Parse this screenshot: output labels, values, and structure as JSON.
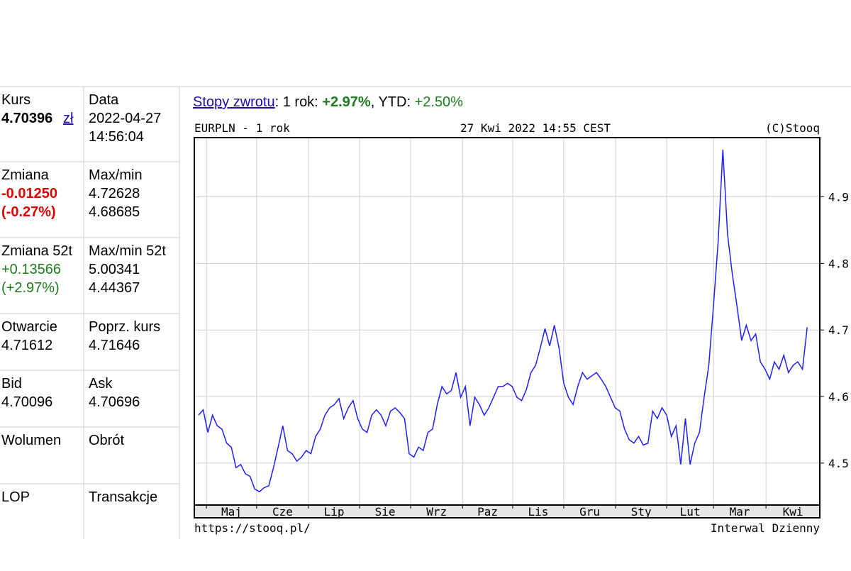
{
  "table": {
    "rows": [
      [
        [
          "Kurs",
          "4.70396",
          "zł"
        ],
        [
          "Data",
          "2022-04-27",
          "14:56:04"
        ]
      ],
      [
        [
          "Zmiana",
          "-0.01250",
          "(-0.27%)"
        ],
        [
          "Max/min",
          "4.72628",
          "4.68685"
        ]
      ],
      [
        [
          "Zmiana 52t",
          "+0.13566",
          "(+2.97%)"
        ],
        [
          "Max/min 52t",
          "5.00341",
          "4.44367"
        ]
      ],
      [
        [
          "Otwarcie",
          "4.71612"
        ],
        [
          "Poprz. kurs",
          "4.71646"
        ]
      ],
      [
        [
          "Bid",
          "4.70096"
        ],
        [
          "Ask",
          "4.70696"
        ]
      ],
      [
        [
          "Wolumen"
        ],
        [
          "Obrót"
        ]
      ],
      [
        [
          "LOP"
        ],
        [
          "Transakcje"
        ]
      ]
    ]
  },
  "returns": {
    "link": "Stopy zwrotu",
    "period_label": ": 1 rok: ",
    "period_value": "+2.97%",
    "ytd_label": ", YTD: ",
    "ytd_value": "+2.50%"
  },
  "chart_data": {
    "type": "line",
    "title": "EURPLN - 1 rok",
    "subtitle": "27 Kwi 2022 14:55 CEST",
    "copyright": "(C)Stooq",
    "source": "https://stooq.pl/",
    "interval": "Interwal Dzienny",
    "series": [
      {
        "color": "#1f1fff",
        "values": [
          4.572,
          4.58,
          4.546,
          4.572,
          4.556,
          4.551,
          4.53,
          4.524,
          4.493,
          4.498,
          4.484,
          4.48,
          4.461,
          4.457,
          4.463,
          4.466,
          4.493,
          4.524,
          4.556,
          4.519,
          4.514,
          4.503,
          4.509,
          4.519,
          4.514,
          4.54,
          4.551,
          4.572,
          4.583,
          4.588,
          4.597,
          4.567,
          4.583,
          4.594,
          4.567,
          4.551,
          4.546,
          4.572,
          4.58,
          4.572,
          4.556,
          4.578,
          4.583,
          4.576,
          4.567,
          4.514,
          4.509,
          4.524,
          4.519,
          4.546,
          4.551,
          4.588,
          4.615,
          4.604,
          4.609,
          4.636,
          4.599,
          4.615,
          4.556,
          4.599,
          4.588,
          4.572,
          4.583,
          4.599,
          4.615,
          4.615,
          4.62,
          4.615,
          4.599,
          4.594,
          4.61,
          4.636,
          4.647,
          4.673,
          4.702,
          4.676,
          4.707,
          4.673,
          4.62,
          4.599,
          4.588,
          4.615,
          4.636,
          4.626,
          4.631,
          4.636,
          4.626,
          4.615,
          4.599,
          4.583,
          4.578,
          4.551,
          4.535,
          4.53,
          4.54,
          4.527,
          4.53,
          4.578,
          4.567,
          4.583,
          4.572,
          4.54,
          4.556,
          4.498,
          4.567,
          4.498,
          4.53,
          4.546,
          4.599,
          4.647,
          4.737,
          4.833,
          4.971,
          4.844,
          4.785,
          4.737,
          4.684,
          4.707,
          4.684,
          4.694,
          4.652,
          4.641,
          4.626,
          4.652,
          4.641,
          4.662,
          4.636,
          4.647,
          4.652,
          4.641,
          4.704
        ]
      }
    ],
    "xlim": [
      -0.9,
      132.7
    ],
    "xticks": [
      {
        "value": 1.7,
        "label": "Maj"
      },
      {
        "value": 12.4,
        "label": "Cze"
      },
      {
        "value": 23.5,
        "label": "Lip"
      },
      {
        "value": 34.4,
        "label": "Sie"
      },
      {
        "value": 45.3,
        "label": "Wrz"
      },
      {
        "value": 56.4,
        "label": "Paz"
      },
      {
        "value": 67.1,
        "label": "Lis"
      },
      {
        "value": 78,
        "label": "Gru"
      },
      {
        "value": 89.1,
        "label": "Sty"
      },
      {
        "value": 100,
        "label": "Lut"
      },
      {
        "value": 110,
        "label": "Mar"
      },
      {
        "value": 121.2,
        "label": "Kwi"
      }
    ],
    "ylim": [
      4.437,
      4.989
    ],
    "yticks": [
      4.5,
      4.6,
      4.7,
      4.8,
      4.9
    ],
    "grid": true
  }
}
